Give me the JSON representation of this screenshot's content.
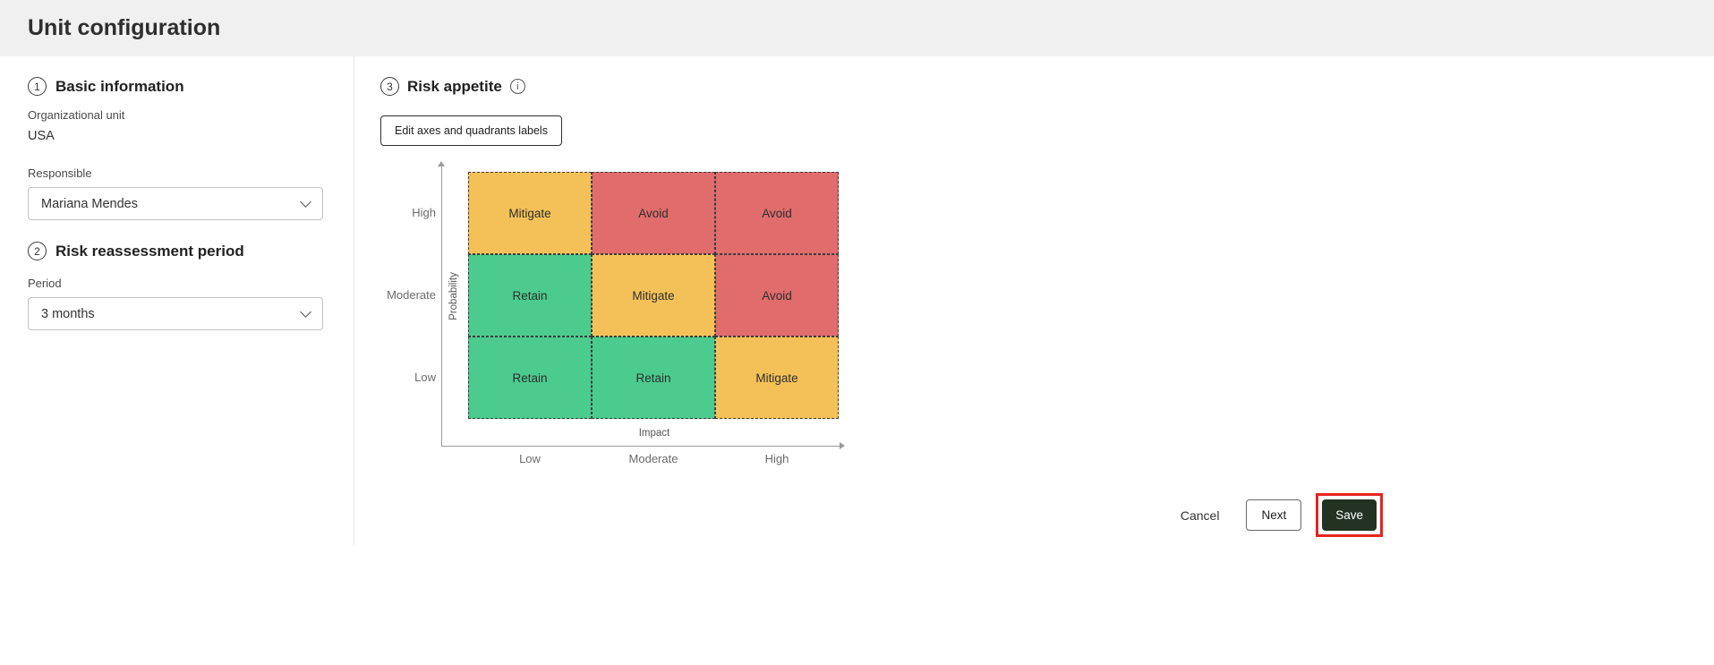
{
  "header": {
    "title": "Unit configuration"
  },
  "sections": {
    "basic": {
      "number": "1",
      "title": "Basic information",
      "org_unit_label": "Organizational unit",
      "org_unit_value": "USA",
      "responsible_label": "Responsible",
      "responsible_value": "Mariana Mendes"
    },
    "reassessment": {
      "number": "2",
      "title": "Risk reassessment period",
      "period_label": "Period",
      "period_value": "3 months"
    },
    "risk_appetite": {
      "number": "3",
      "title": "Risk appetite",
      "info_icon": "i",
      "edit_button_label": "Edit axes and quadrants labels"
    }
  },
  "matrix": {
    "y_axis_label": "Probability",
    "x_axis_label": "Impact",
    "row_labels": [
      "High",
      "Moderate",
      "Low"
    ],
    "col_labels": [
      "Low",
      "Moderate",
      "High"
    ],
    "cells": [
      [
        "Mitigate",
        "Avoid",
        "Avoid"
      ],
      [
        "Retain",
        "Mitigate",
        "Avoid"
      ],
      [
        "Retain",
        "Retain",
        "Mitigate"
      ]
    ],
    "cell_colors": {
      "Mitigate": "#f4c159",
      "Avoid": "#e06c6c",
      "Retain": "#4bcb8d"
    }
  },
  "footer": {
    "cancel_label": "Cancel",
    "next_label": "Next",
    "save_label": "Save"
  },
  "colors": {
    "header_bg": "#f0f0f0",
    "save_button_bg": "#233223",
    "annotation_red": "#e8231f"
  }
}
